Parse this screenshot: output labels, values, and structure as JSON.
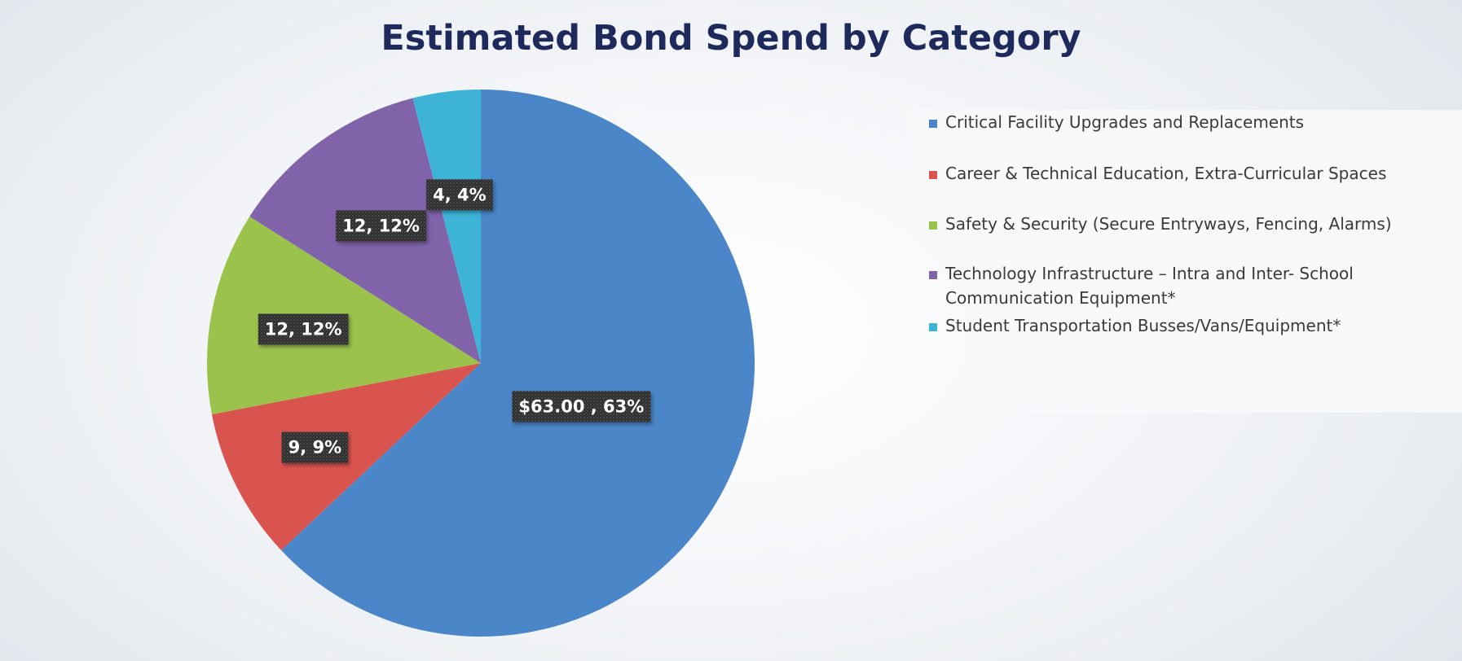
{
  "chart_data": {
    "type": "pie",
    "title": "Estimated Bond Spend by Category",
    "legend_position": "right",
    "slices": [
      {
        "name": "Critical Facility Upgrades and Replacements",
        "value": 63,
        "percent": 63,
        "data_label": "$63.00 , 63%",
        "color": "#4a86c8"
      },
      {
        "name": "Career & Technical Education, Extra-Curricular Spaces",
        "value": 9,
        "percent": 9,
        "data_label": "9, 9%",
        "color": "#d9534f"
      },
      {
        "name": "Safety & Security (Secure Entryways, Fencing, Alarms)",
        "value": 12,
        "percent": 12,
        "data_label": "12, 12%",
        "color": "#9bc34c"
      },
      {
        "name": "Technology Infrastructure – Intra and Inter- School Communication Equipment*",
        "value": 12,
        "percent": 12,
        "data_label": "12, 12%",
        "color": "#8063a9"
      },
      {
        "name": "Student Transportation Busses/Vans/Equipment*",
        "value": 4,
        "percent": 4,
        "data_label": "4, 4%",
        "color": "#3db3d6"
      }
    ]
  }
}
